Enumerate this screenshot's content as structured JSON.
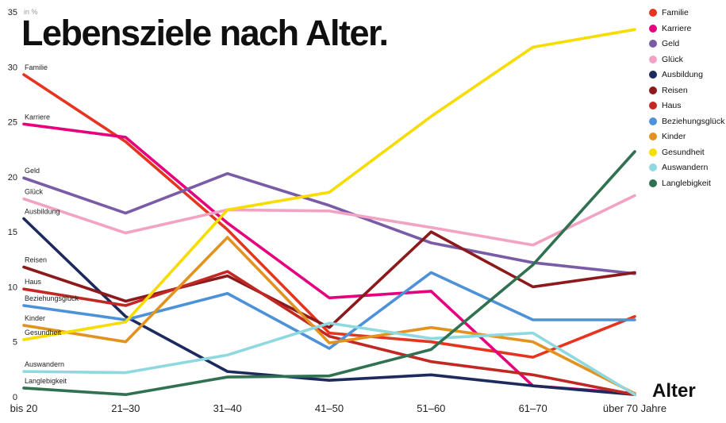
{
  "title": "Lebensziele nach Alter.",
  "axis": {
    "y_unit_label": "in %",
    "x_axis_label": "Alter"
  },
  "chart_data": {
    "type": "line",
    "title": "Lebensziele nach Alter.",
    "ylabel": "in %",
    "xlabel": "Alter",
    "ylim": [
      0,
      35
    ],
    "y_ticks": [
      0,
      5,
      10,
      15,
      20,
      25,
      30,
      35
    ],
    "grid": false,
    "legend_position": "top-right",
    "categories": [
      "bis 20",
      "21–30",
      "31–40",
      "41–50",
      "51–60",
      "61–70",
      "über 70 Jahre"
    ],
    "series": [
      {
        "name": "Familie",
        "color": "#e6351f",
        "values": [
          29.3,
          23.2,
          15.2,
          5.8,
          5.0,
          3.6,
          7.3
        ]
      },
      {
        "name": "Karriere",
        "color": "#e5007d",
        "values": [
          24.8,
          23.6,
          15.8,
          9.0,
          9.6,
          1.0,
          0.3
        ]
      },
      {
        "name": "Geld",
        "color": "#7a5ba6",
        "values": [
          19.9,
          16.7,
          20.3,
          17.4,
          14.0,
          12.2,
          11.2
        ]
      },
      {
        "name": "Glück",
        "color": "#f2a3c3",
        "values": [
          18.0,
          14.9,
          17.0,
          16.9,
          15.4,
          13.8,
          18.3
        ]
      },
      {
        "name": "Ausbildung",
        "color": "#1c2a5e",
        "values": [
          16.2,
          7.3,
          2.3,
          1.5,
          2.0,
          1.0,
          0.2
        ]
      },
      {
        "name": "Reisen",
        "color": "#8c1a1c",
        "values": [
          11.8,
          8.7,
          11.0,
          6.3,
          15.0,
          10.0,
          11.3
        ]
      },
      {
        "name": "Haus",
        "color": "#c22823",
        "values": [
          9.8,
          8.3,
          11.4,
          5.5,
          3.2,
          2.0,
          0.2
        ]
      },
      {
        "name": "Beziehungsglück",
        "color": "#4d92d9",
        "values": [
          8.3,
          7.0,
          9.4,
          4.4,
          11.3,
          7.0,
          7.0
        ]
      },
      {
        "name": "Kinder",
        "color": "#e2921f",
        "values": [
          6.5,
          5.0,
          14.5,
          4.9,
          6.3,
          5.0,
          0.3
        ]
      },
      {
        "name": "Gesundheit",
        "color": "#f7dc00",
        "values": [
          5.2,
          6.8,
          17.0,
          18.6,
          25.5,
          31.8,
          33.4
        ]
      },
      {
        "name": "Auswandern",
        "color": "#8ed8df",
        "values": [
          2.3,
          2.2,
          3.8,
          6.7,
          5.3,
          5.8,
          0.2
        ]
      },
      {
        "name": "Langlebigkeit",
        "color": "#2f7150",
        "values": [
          0.8,
          0.2,
          1.8,
          1.9,
          4.3,
          12.0,
          22.3
        ]
      }
    ]
  }
}
